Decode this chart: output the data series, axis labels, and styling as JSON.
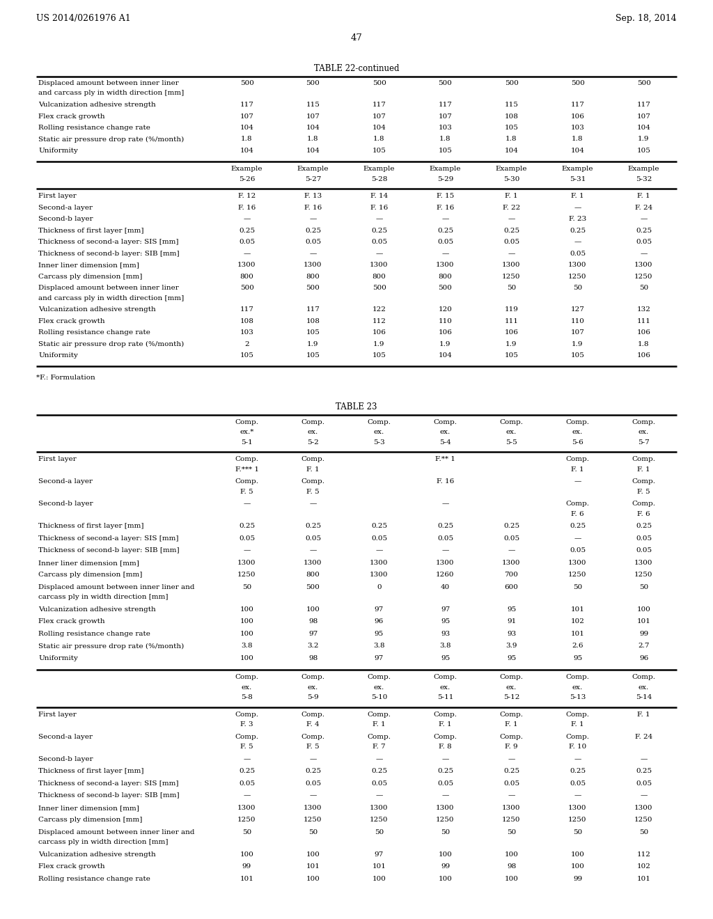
{
  "page_header_left": "US 2014/0261976 A1",
  "page_header_right": "Sep. 18, 2014",
  "page_number": "47",
  "background_color": "#ffffff",
  "table22_title": "TABLE 22-continued",
  "table22_cols": [
    "",
    "Example\n5-26",
    "Example\n5-27",
    "Example\n5-28",
    "Example\n5-29",
    "Example\n5-30",
    "Example\n5-31",
    "Example\n5-32"
  ],
  "table22_rows_top": [
    [
      "Displaced amount between inner liner\nand carcass ply in width direction [mm]",
      "500",
      "500",
      "500",
      "500",
      "500",
      "500",
      "500"
    ],
    [
      "Vulcanization adhesive strength",
      "117",
      "115",
      "117",
      "117",
      "115",
      "117",
      "117"
    ],
    [
      "Flex crack growth",
      "107",
      "107",
      "107",
      "107",
      "108",
      "106",
      "107"
    ],
    [
      "Rolling resistance change rate",
      "104",
      "104",
      "104",
      "103",
      "105",
      "103",
      "104"
    ],
    [
      "Static air pressure drop rate (%/month)",
      "1.8",
      "1.8",
      "1.8",
      "1.8",
      "1.8",
      "1.8",
      "1.9"
    ],
    [
      "Uniformity",
      "104",
      "104",
      "105",
      "105",
      "104",
      "104",
      "105"
    ]
  ],
  "table22_rows_bottom": [
    [
      "First layer",
      "F. 12",
      "F. 13",
      "F. 14",
      "F. 15",
      "F. 1",
      "F. 1",
      "F. 1"
    ],
    [
      "Second-a layer",
      "F. 16",
      "F. 16",
      "F. 16",
      "F. 16",
      "F. 22",
      "—",
      "F. 24"
    ],
    [
      "Second-b layer",
      "—",
      "—",
      "—",
      "—",
      "—",
      "F. 23",
      "—"
    ],
    [
      "Thickness of first layer [mm]",
      "0.25",
      "0.25",
      "0.25",
      "0.25",
      "0.25",
      "0.25",
      "0.25"
    ],
    [
      "Thickness of second-a layer: SIS [mm]",
      "0.05",
      "0.05",
      "0.05",
      "0.05",
      "0.05",
      "—",
      "0.05"
    ],
    [
      "Thickness of second-b layer: SIB [mm]",
      "—",
      "—",
      "—",
      "—",
      "—",
      "0.05",
      "—"
    ],
    [
      "Inner liner dimension [mm]",
      "1300",
      "1300",
      "1300",
      "1300",
      "1300",
      "1300",
      "1300"
    ],
    [
      "Carcass ply dimension [mm]",
      "800",
      "800",
      "800",
      "800",
      "1250",
      "1250",
      "1250"
    ],
    [
      "Displaced amount between inner liner\nand carcass ply in width direction [mm]",
      "500",
      "500",
      "500",
      "500",
      "50",
      "50",
      "50"
    ],
    [
      "Vulcanization adhesive strength",
      "117",
      "117",
      "122",
      "120",
      "119",
      "127",
      "132"
    ],
    [
      "Flex crack growth",
      "108",
      "108",
      "112",
      "110",
      "111",
      "110",
      "111"
    ],
    [
      "Rolling resistance change rate",
      "103",
      "105",
      "106",
      "106",
      "106",
      "107",
      "106"
    ],
    [
      "Static air pressure drop rate (%/month)",
      "2",
      "1.9",
      "1.9",
      "1.9",
      "1.9",
      "1.9",
      "1.8"
    ],
    [
      "Uniformity",
      "105",
      "105",
      "105",
      "104",
      "105",
      "105",
      "106"
    ]
  ],
  "footnote22": "*F.: Formulation",
  "table23_title": "TABLE 23",
  "table23_cols_top": [
    "",
    "Comp.\nex.*\n5-1",
    "Comp.\nex.\n5-2",
    "Comp.\nex.\n5-3",
    "Comp.\nex.\n5-4",
    "Comp.\nex.\n5-5",
    "Comp.\nex.\n5-6",
    "Comp.\nex.\n5-7"
  ],
  "table23_rows_top": [
    [
      "First layer",
      "Comp.\nF.*** 1",
      "Comp.\nF. 1",
      "",
      "F.** 1",
      "",
      "Comp.\nF. 1",
      "Comp.\nF. 1"
    ],
    [
      "Second-a layer",
      "Comp.\nF. 5",
      "Comp.\nF. 5",
      "",
      "F. 16",
      "",
      "—",
      "Comp.\nF. 5"
    ],
    [
      "Second-b layer",
      "—",
      "—",
      "",
      "—",
      "",
      "Comp.\nF. 6",
      "Comp.\nF. 6"
    ],
    [
      "Thickness of first layer [mm]",
      "0.25",
      "0.25",
      "0.25",
      "0.25",
      "0.25",
      "0.25",
      "0.25"
    ],
    [
      "Thickness of second-a layer: SIS [mm]",
      "0.05",
      "0.05",
      "0.05",
      "0.05",
      "0.05",
      "—",
      "0.05"
    ],
    [
      "Thickness of second-b layer: SIB [mm]",
      "—",
      "—",
      "—",
      "—",
      "—",
      "0.05",
      "0.05"
    ],
    [
      "Inner liner dimension [mm]",
      "1300",
      "1300",
      "1300",
      "1300",
      "1300",
      "1300",
      "1300"
    ],
    [
      "Carcass ply dimension [mm]",
      "1250",
      "800",
      "1300",
      "1260",
      "700",
      "1250",
      "1250"
    ],
    [
      "Displaced amount between inner liner and\ncarcass ply in width direction [mm]",
      "50",
      "500",
      "0",
      "40",
      "600",
      "50",
      "50"
    ],
    [
      "Vulcanization adhesive strength",
      "100",
      "100",
      "97",
      "97",
      "95",
      "101",
      "100"
    ],
    [
      "Flex crack growth",
      "100",
      "98",
      "96",
      "95",
      "91",
      "102",
      "101"
    ],
    [
      "Rolling resistance change rate",
      "100",
      "97",
      "95",
      "93",
      "93",
      "101",
      "99"
    ],
    [
      "Static air pressure drop rate (%/month)",
      "3.8",
      "3.2",
      "3.8",
      "3.8",
      "3.9",
      "2.6",
      "2.7"
    ],
    [
      "Uniformity",
      "100",
      "98",
      "97",
      "95",
      "95",
      "95",
      "96"
    ]
  ],
  "table23_cols_bottom": [
    "",
    "Comp.\nex.\n5-8",
    "Comp.\nex.\n5-9",
    "Comp.\nex.\n5-10",
    "Comp.\nex.\n5-11",
    "Comp.\nex.\n5-12",
    "Comp.\nex.\n5-13",
    "Comp.\nex.\n5-14"
  ],
  "table23_rows_bottom": [
    [
      "First layer",
      "Comp.\nF. 3",
      "Comp.\nF. 4",
      "Comp.\nF. 1",
      "Comp.\nF. 1",
      "Comp.\nF. 1",
      "Comp.\nF. 1",
      "F. 1"
    ],
    [
      "Second-a layer",
      "Comp.\nF. 5",
      "Comp.\nF. 5",
      "Comp.\nF. 7",
      "Comp.\nF. 8",
      "Comp.\nF. 9",
      "Comp.\nF. 10",
      "F. 24"
    ],
    [
      "Second-b layer",
      "—",
      "—",
      "—",
      "—",
      "—",
      "—",
      "—"
    ],
    [
      "Thickness of first layer [mm]",
      "0.25",
      "0.25",
      "0.25",
      "0.25",
      "0.25",
      "0.25",
      "0.25"
    ],
    [
      "Thickness of second-a layer: SIS [mm]",
      "0.05",
      "0.05",
      "0.05",
      "0.05",
      "0.05",
      "0.05",
      "0.05"
    ],
    [
      "Thickness of second-b layer: SIB [mm]",
      "—",
      "—",
      "—",
      "—",
      "—",
      "—",
      "—"
    ],
    [
      "Inner liner dimension [mm]",
      "1300",
      "1300",
      "1300",
      "1300",
      "1300",
      "1300",
      "1300"
    ],
    [
      "Carcass ply dimension [mm]",
      "1250",
      "1250",
      "1250",
      "1250",
      "1250",
      "1250",
      "1250"
    ],
    [
      "Displaced amount between inner liner and\ncarcass ply in width direction [mm]",
      "50",
      "50",
      "50",
      "50",
      "50",
      "50",
      "50"
    ],
    [
      "Vulcanization adhesive strength",
      "100",
      "100",
      "97",
      "100",
      "100",
      "100",
      "112"
    ],
    [
      "Flex crack growth",
      "99",
      "101",
      "101",
      "99",
      "98",
      "100",
      "102"
    ],
    [
      "Rolling resistance change rate",
      "101",
      "100",
      "100",
      "100",
      "100",
      "99",
      "101"
    ]
  ]
}
